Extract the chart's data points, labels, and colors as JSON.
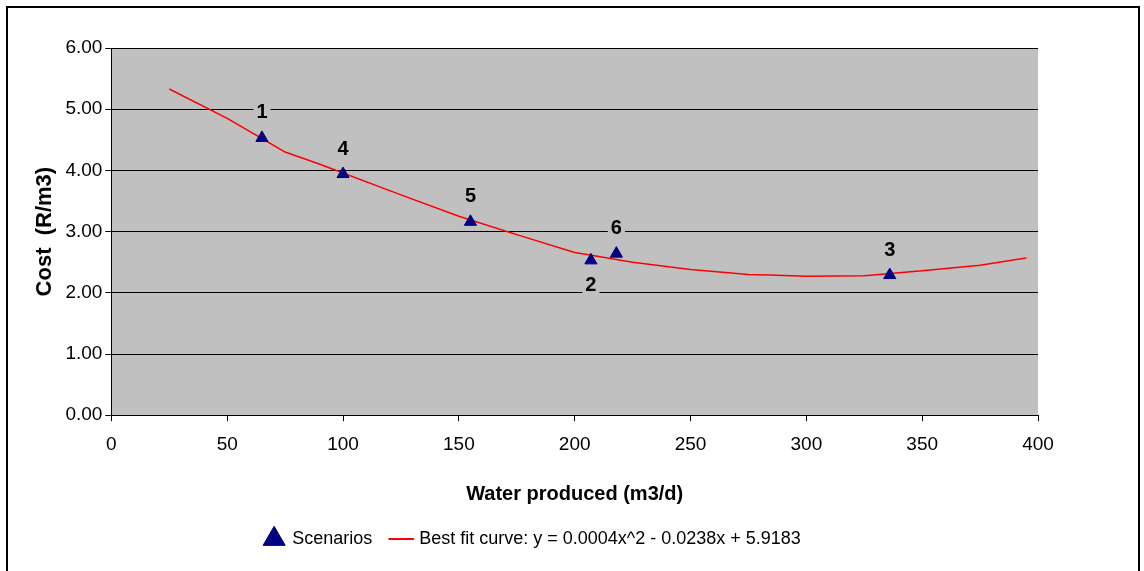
{
  "chart_data": {
    "type": "scatter",
    "xlabel": "Water produced (m3/d)",
    "ylabel": "Cost  (R/m3)",
    "xlim": [
      0,
      400
    ],
    "xticks": [
      0,
      50,
      100,
      150,
      200,
      250,
      300,
      350,
      400
    ],
    "ylim": [
      0,
      6
    ],
    "yticks": [
      {
        "value": 0,
        "label": "0.00"
      },
      {
        "value": 1,
        "label": "1.00"
      },
      {
        "value": 2,
        "label": "2.00"
      },
      {
        "value": 3,
        "label": "3.00"
      },
      {
        "value": 4,
        "label": "4.00"
      },
      {
        "value": 5,
        "label": "5.00"
      },
      {
        "value": 6,
        "label": "6.00"
      }
    ],
    "grid": "y",
    "legend": "bottom",
    "series": [
      {
        "name": "Scenarios",
        "marker": "triangle",
        "color": "#000080",
        "x": [
          65,
          207,
          336,
          100,
          155,
          218
        ],
        "values": [
          4.53,
          2.53,
          2.29,
          3.94,
          3.16,
          2.64
        ]
      },
      {
        "name": "Best fit curve: y = 0.0004x^2 - 0.0238x + 5.9183",
        "type": "line",
        "marker": "none",
        "line_style": "solid",
        "color": "#ff0000",
        "x": [
          25,
          50,
          75,
          90,
          125,
          150,
          175,
          200,
          225,
          250,
          275,
          300,
          325,
          350,
          375,
          395
        ],
        "values": [
          5.33,
          4.85,
          4.3,
          4.1,
          3.6,
          3.25,
          2.95,
          2.66,
          2.5,
          2.38,
          2.3,
          2.27,
          2.28,
          2.36,
          2.45,
          2.57
        ]
      }
    ],
    "annotations": [
      {
        "text": "1",
        "x": 65,
        "y": 4.53
      },
      {
        "text": "2",
        "x": 207,
        "y": 2.53
      },
      {
        "text": "3",
        "x": 336,
        "y": 2.29
      },
      {
        "text": "4",
        "x": 100,
        "y": 3.94
      },
      {
        "text": "5",
        "x": 155,
        "y": 3.16
      },
      {
        "text": "6",
        "x": 218,
        "y": 2.64
      }
    ]
  }
}
